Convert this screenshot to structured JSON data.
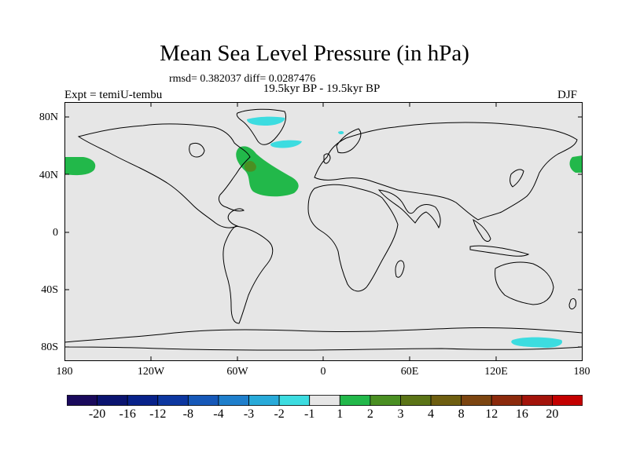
{
  "title": "Mean Sea Level Pressure (in hPa)",
  "stats": "rmsd= 0.382037 diff= 0.0287476",
  "subtitle": "19.5kyr BP - 19.5kyr BP",
  "expt": "Expt = temiU-tembu",
  "season": "DJF",
  "lat_labels": [
    "80N",
    "40N",
    "0",
    "40S",
    "80S"
  ],
  "lon_labels": [
    "180",
    "120W",
    "60W",
    "0",
    "60E",
    "120E",
    "180"
  ],
  "colorbar": {
    "labels": [
      "-20",
      "-16",
      "-12",
      "-8",
      "-4",
      "-3",
      "-2",
      "-1",
      "1",
      "2",
      "3",
      "4",
      "8",
      "12",
      "16",
      "20"
    ],
    "colors": [
      "#1a0a5c",
      "#0b1470",
      "#08228a",
      "#0d37a0",
      "#1658b8",
      "#1f7fcc",
      "#28aad9",
      "#3cdce0",
      "#e6e6e6",
      "#22b84a",
      "#4a8f22",
      "#5b7416",
      "#6e5e10",
      "#7c4510",
      "#8c2a0c",
      "#a3130a",
      "#c40000"
    ]
  },
  "colors": {
    "land_sea_background": "#e6e6e6",
    "frame": "#000000"
  }
}
